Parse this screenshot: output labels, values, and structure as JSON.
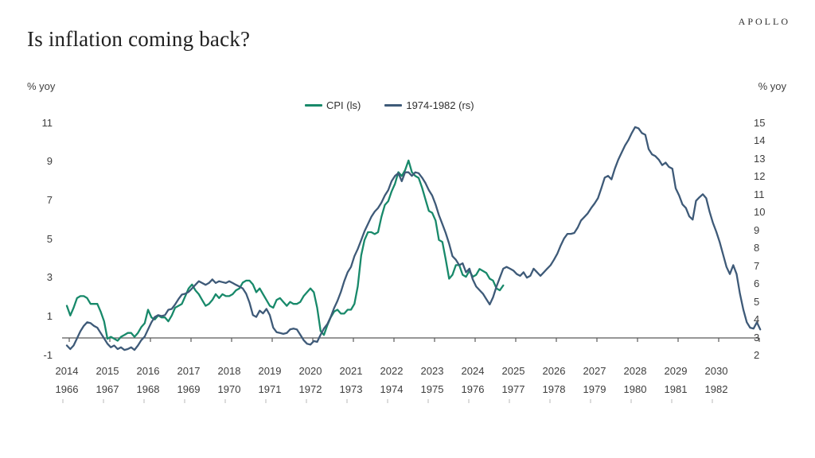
{
  "header": {
    "title": "Is inflation coming back?",
    "logo": "APOLLO"
  },
  "axes": {
    "left_unit": "% yoy",
    "right_unit": "% yoy",
    "left_ticks": [
      11,
      9,
      7,
      5,
      3,
      1,
      -1
    ],
    "right_ticks": [
      15,
      14,
      13,
      12,
      11,
      10,
      9,
      8,
      7,
      6,
      5,
      4,
      3,
      2
    ],
    "years_top": [
      2014,
      2015,
      2016,
      2017,
      2018,
      2019,
      2020,
      2021,
      2022,
      2023,
      2024,
      2025,
      2026,
      2027,
      2028,
      2029,
      2030
    ],
    "years_bottom": [
      1966,
      1967,
      1968,
      1969,
      1970,
      1971,
      1972,
      1973,
      1974,
      1975,
      1976,
      1977,
      1978,
      1979,
      1980,
      1981,
      1982
    ]
  },
  "legend": [
    {
      "label": "CPI (ls)",
      "color": "#18896a"
    },
    {
      "label": "1974-1982 (rs)",
      "color": "#3e5a78"
    }
  ],
  "chart_data": {
    "type": "line",
    "title": "Is inflation coming back?",
    "y_left": {
      "label": "% yoy",
      "range": [
        -1,
        11
      ],
      "ticks": [
        -1,
        1,
        3,
        5,
        7,
        9,
        11
      ]
    },
    "y_right": {
      "label": "% yoy",
      "range": [
        2,
        15
      ],
      "ticks": [
        2,
        3,
        4,
        5,
        6,
        7,
        8,
        9,
        10,
        11,
        12,
        13,
        14,
        15
      ]
    },
    "x_top_years": {
      "start": 2014,
      "end": 2030
    },
    "x_bottom_years": {
      "start": 1966,
      "end": 1982
    },
    "grid": false,
    "legend_position": "top-center",
    "series": [
      {
        "name": "CPI (ls)",
        "axis": "left",
        "color": "#18896a",
        "start_year": 2014,
        "frequency": "monthly",
        "values": [
          1.6,
          1.1,
          1.5,
          2.0,
          2.1,
          2.1,
          2.0,
          1.7,
          1.7,
          1.7,
          1.3,
          0.8,
          -0.1,
          0.0,
          -0.1,
          -0.2,
          0.0,
          0.1,
          0.2,
          0.2,
          0.0,
          0.2,
          0.5,
          0.7,
          1.4,
          1.0,
          0.9,
          1.1,
          1.0,
          1.0,
          0.8,
          1.1,
          1.5,
          1.6,
          1.7,
          2.1,
          2.5,
          2.7,
          2.4,
          2.2,
          1.9,
          1.6,
          1.7,
          1.9,
          2.2,
          2.0,
          2.2,
          2.1,
          2.1,
          2.2,
          2.4,
          2.5,
          2.8,
          2.9,
          2.9,
          2.7,
          2.3,
          2.5,
          2.2,
          1.9,
          1.6,
          1.5,
          1.9,
          2.0,
          1.8,
          1.6,
          1.8,
          1.7,
          1.7,
          1.8,
          2.1,
          2.3,
          2.5,
          2.3,
          1.5,
          0.3,
          0.1,
          0.6,
          1.0,
          1.3,
          1.4,
          1.2,
          1.2,
          1.4,
          1.4,
          1.7,
          2.6,
          4.2,
          5.0,
          5.4,
          5.4,
          5.3,
          5.4,
          6.2,
          6.8,
          7.0,
          7.5,
          7.9,
          8.5,
          8.3,
          8.6,
          9.1,
          8.5,
          8.3,
          8.2,
          7.7,
          7.1,
          6.5,
          6.4,
          6.0,
          5.0,
          4.9,
          4.0,
          3.0,
          3.2,
          3.7,
          3.7,
          3.2,
          3.1,
          3.4,
          3.1,
          3.2,
          3.5,
          3.4,
          3.3,
          3.0,
          2.9,
          2.5,
          2.4,
          2.65
        ]
      },
      {
        "name": "1974-1982 (rs)",
        "axis": "right",
        "color": "#3e5a78",
        "start_year": 1966,
        "frequency": "monthly",
        "values": [
          2.6,
          2.4,
          2.6,
          3.0,
          3.4,
          3.7,
          3.9,
          3.85,
          3.7,
          3.6,
          3.3,
          3.0,
          2.7,
          2.5,
          2.6,
          2.4,
          2.5,
          2.35,
          2.4,
          2.5,
          2.35,
          2.6,
          2.9,
          3.1,
          3.5,
          3.9,
          4.2,
          4.3,
          4.25,
          4.3,
          4.6,
          4.65,
          4.9,
          5.2,
          5.45,
          5.5,
          5.6,
          5.8,
          6.0,
          6.2,
          6.1,
          6.0,
          6.1,
          6.3,
          6.1,
          6.2,
          6.15,
          6.1,
          6.2,
          6.1,
          6.0,
          5.9,
          5.8,
          5.5,
          5.0,
          4.3,
          4.2,
          4.55,
          4.4,
          4.65,
          4.3,
          3.6,
          3.35,
          3.3,
          3.25,
          3.3,
          3.5,
          3.55,
          3.5,
          3.2,
          2.9,
          2.7,
          2.65,
          2.85,
          2.8,
          3.2,
          3.55,
          3.8,
          4.2,
          4.7,
          5.1,
          5.6,
          6.2,
          6.7,
          7.0,
          7.6,
          8.0,
          8.5,
          9.0,
          9.4,
          9.8,
          10.1,
          10.3,
          10.6,
          11.0,
          11.3,
          11.8,
          12.1,
          12.25,
          11.8,
          12.3,
          12.3,
          12.1,
          12.3,
          12.25,
          12.0,
          11.7,
          11.3,
          11.0,
          10.5,
          9.9,
          9.4,
          8.9,
          8.3,
          7.6,
          7.4,
          7.1,
          7.2,
          6.7,
          6.9,
          6.3,
          5.9,
          5.7,
          5.5,
          5.2,
          4.9,
          5.3,
          5.9,
          6.4,
          6.9,
          7.0,
          6.9,
          6.8,
          6.6,
          6.5,
          6.7,
          6.4,
          6.5,
          6.9,
          6.7,
          6.5,
          6.7,
          6.9,
          7.1,
          7.4,
          7.75,
          8.2,
          8.6,
          8.85,
          8.85,
          8.9,
          9.2,
          9.6,
          9.8,
          10.0,
          10.3,
          10.55,
          10.85,
          11.4,
          12.0,
          12.1,
          11.9,
          12.5,
          13.0,
          13.4,
          13.8,
          14.1,
          14.5,
          14.83,
          14.76,
          14.5,
          14.4,
          13.6,
          13.3,
          13.2,
          13.0,
          12.7,
          12.84,
          12.6,
          12.5,
          11.4,
          11.0,
          10.5,
          10.3,
          9.83,
          9.65,
          10.7,
          10.9,
          11.07,
          10.85,
          10.1,
          9.46,
          8.97,
          8.4,
          7.7,
          7.0,
          6.6,
          7.1,
          6.6,
          5.5,
          4.6,
          3.9,
          3.6,
          3.55,
          3.9,
          3.5
        ]
      }
    ]
  }
}
